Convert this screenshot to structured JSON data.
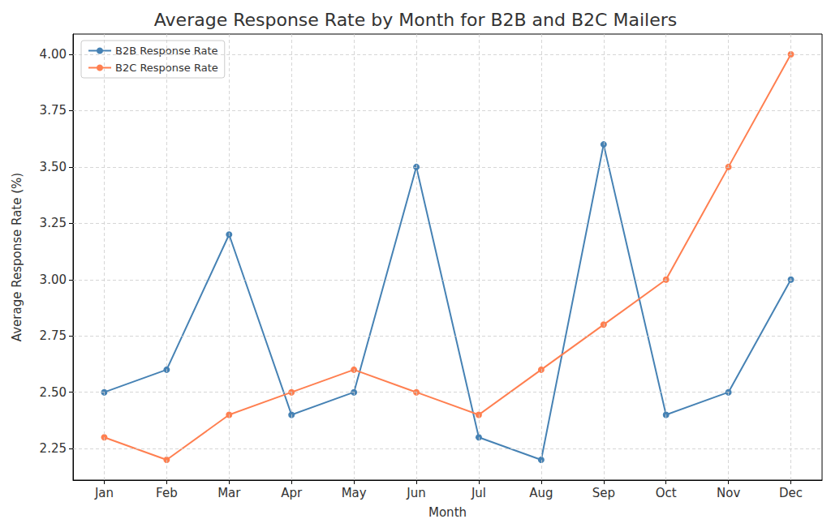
{
  "chart_data": {
    "type": "line",
    "title": "Average Response Rate by Month for B2B and B2C Mailers",
    "x_label": "Month",
    "y_label": "Average Response Rate (%)",
    "categories": [
      "Jan",
      "Feb",
      "Mar",
      "Apr",
      "May",
      "Jun",
      "Jul",
      "Aug",
      "Sep",
      "Oct",
      "Nov",
      "Dec"
    ],
    "series": [
      {
        "name": "B2B Response Rate",
        "color": "#4682b4",
        "marker": "circle",
        "values": [
          2.5,
          2.6,
          3.2,
          2.4,
          2.5,
          3.5,
          2.3,
          2.2,
          3.6,
          2.4,
          2.5,
          3.0
        ]
      },
      {
        "name": "B2C Response Rate",
        "color": "#ff7f50",
        "marker": "circle",
        "values": [
          2.3,
          2.2,
          2.4,
          2.5,
          2.6,
          2.5,
          2.4,
          2.6,
          2.8,
          3.0,
          3.5,
          4.0
        ]
      }
    ],
    "ylim": [
      2.11,
      4.09
    ],
    "yticks": [
      2.25,
      {
        "value": 2.5,
        "label": "2.50"
      },
      2.75,
      {
        "value": 3,
        "label": "3.00"
      },
      3.25,
      {
        "value": 3.5,
        "label": "3.50"
      },
      3.75,
      {
        "value": 4,
        "label": "4.00"
      }
    ],
    "grid": true,
    "legend": "upper left"
  }
}
